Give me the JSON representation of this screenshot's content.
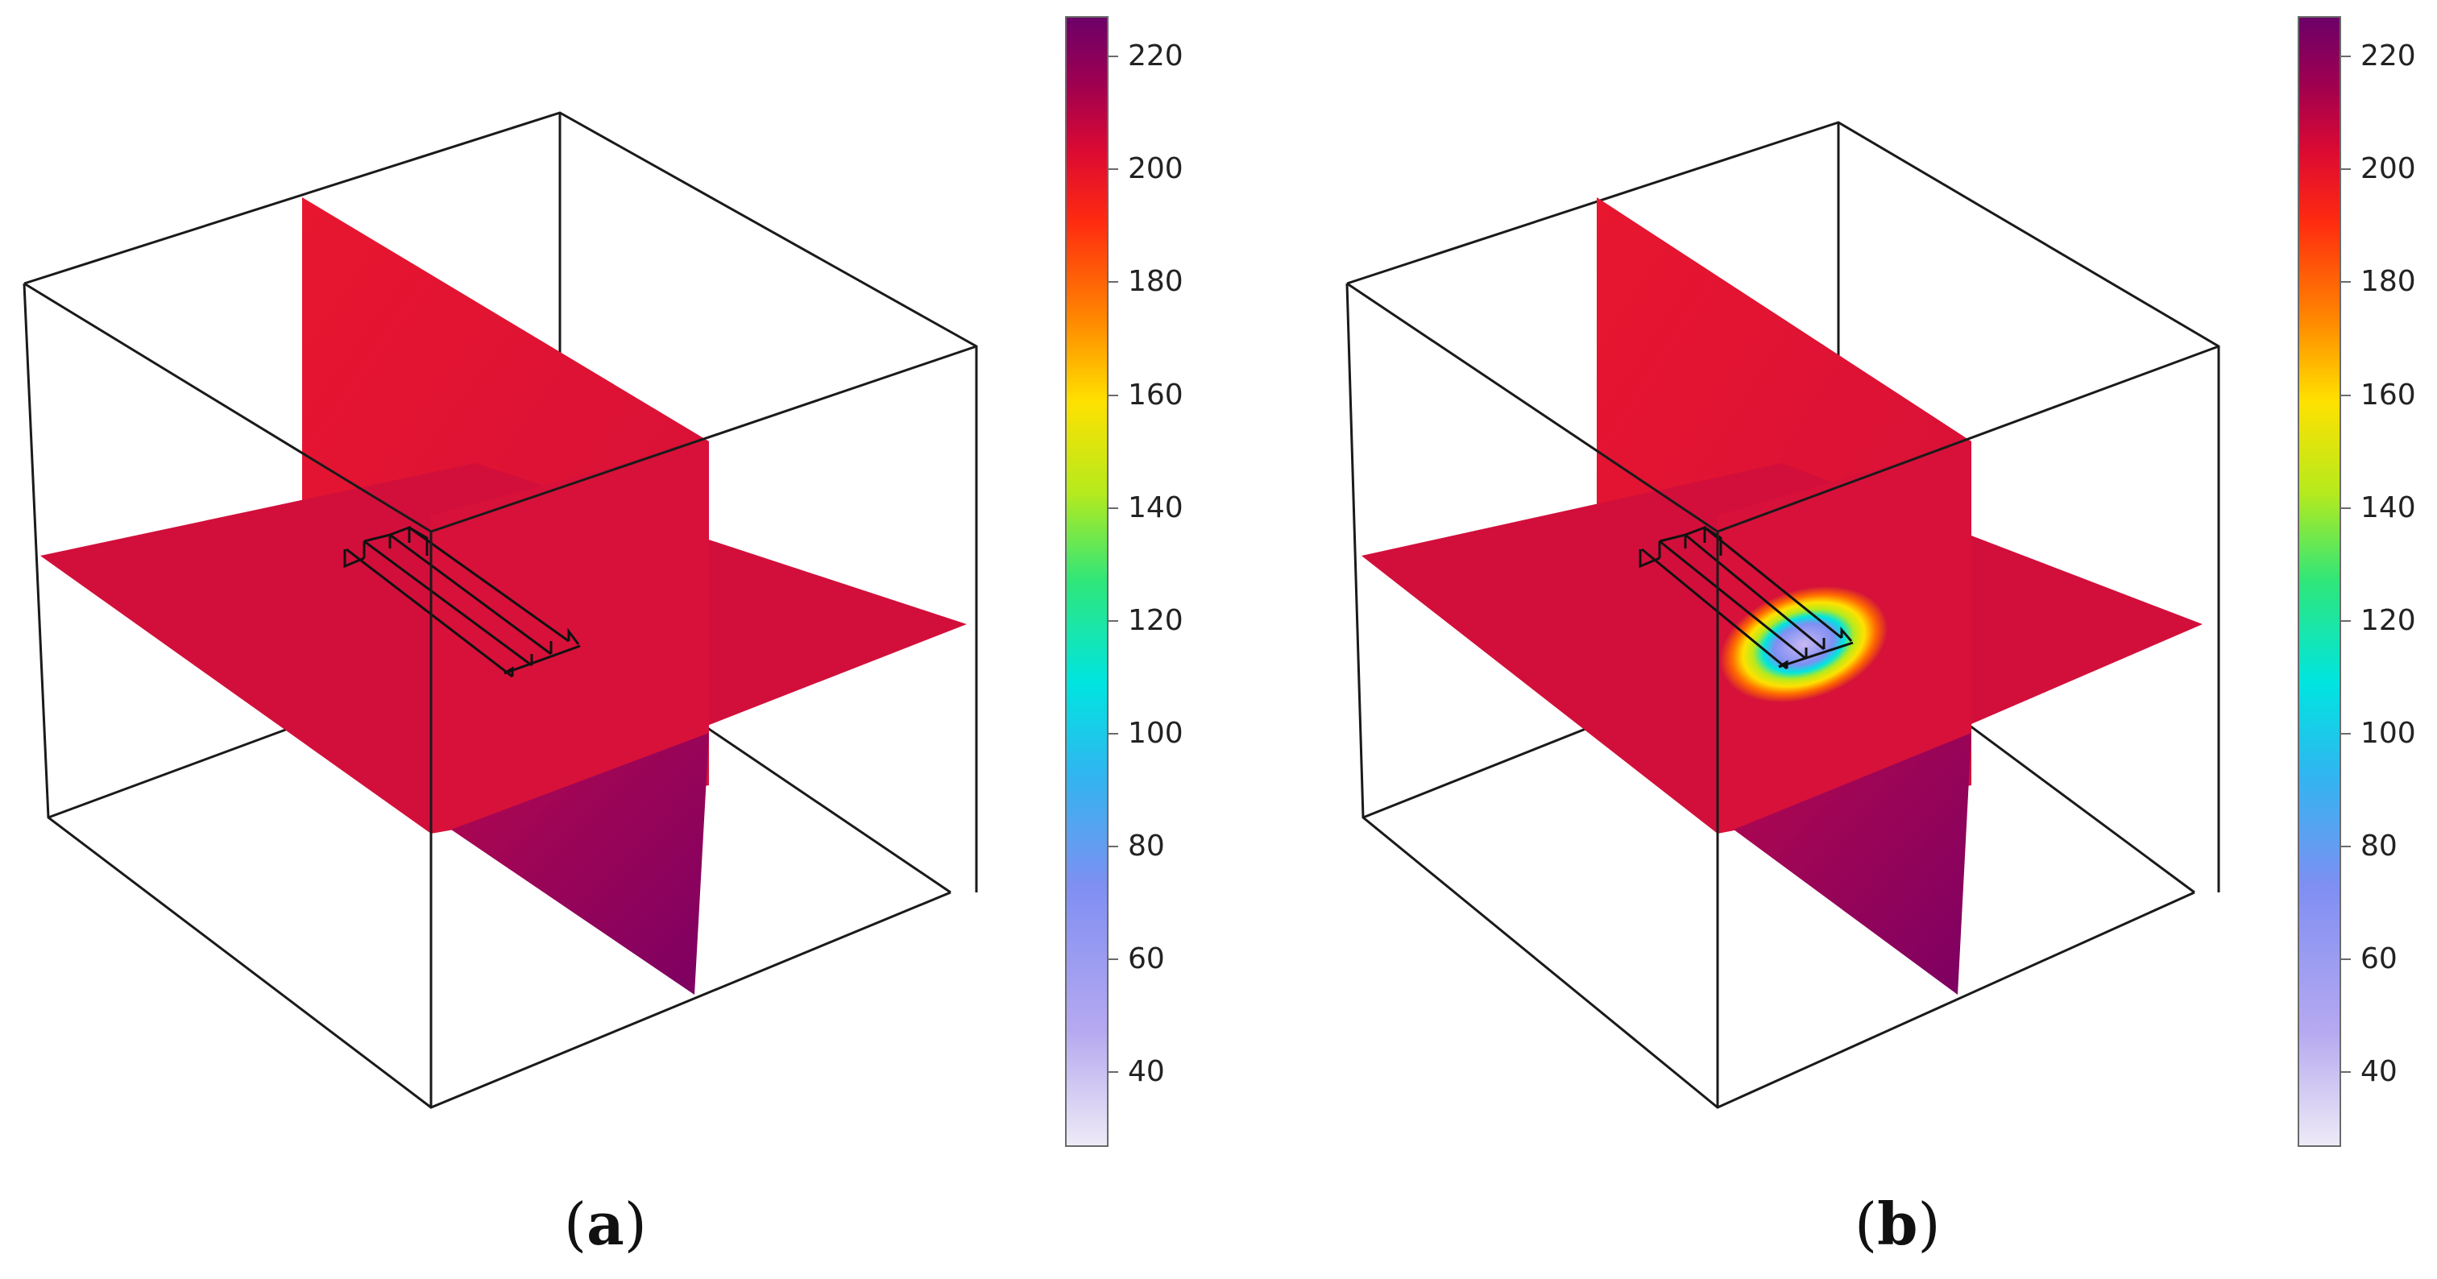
{
  "colorbar": {
    "min": 25,
    "max": 227,
    "ticks": [
      "220",
      "200",
      "180",
      "160",
      "140",
      "120",
      "100",
      "80",
      "60",
      "40"
    ],
    "tick_values": [
      220,
      200,
      180,
      160,
      140,
      120,
      100,
      80,
      60,
      40
    ],
    "colormap": [
      "#eeeaf6",
      "#b7a9f0",
      "#7f8ff2",
      "#2fb6f0",
      "#00e5e0",
      "#2fe67a",
      "#b7ea1c",
      "#ffe100",
      "#ff8a00",
      "#ff2a10",
      "#dd0a32",
      "#a00050",
      "#6c0068"
    ]
  },
  "colors": {
    "slice_main": "#d40f3a",
    "slice_vertical_top": "#e21535",
    "slice_vertical_bottom_start": "#b3084e",
    "slice_vertical_bottom_end": "#7c0062",
    "box_edge": "#1a1a1a"
  },
  "panels": [
    {
      "label": "a",
      "paren_open": "(",
      "paren_close": ")",
      "has_hotspot": false
    },
    {
      "label": "b",
      "paren_open": "(",
      "paren_close": ")",
      "has_hotspot": true
    }
  ]
}
